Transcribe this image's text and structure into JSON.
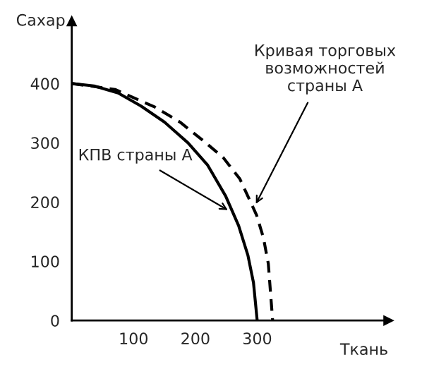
{
  "chart_data": {
    "type": "line",
    "xlabel": "Ткань",
    "ylabel": "Сахар",
    "series": [
      {
        "color": "#000000",
        "line_style": "solid",
        "x": [
          0,
          36,
          75,
          112,
          150,
          188,
          220,
          249,
          270,
          285,
          294,
          300
        ],
        "values": [
          400,
          396,
          384,
          362,
          335,
          300,
          262,
          210,
          160,
          110,
          64,
          0
        ]
      },
      {
        "color": "#000000",
        "line_style": "dashed",
        "x": [
          0,
          70,
          135,
          175,
          211,
          245,
          272,
          299,
          310,
          318,
          325
        ],
        "values": [
          400,
          390,
          360,
          335,
          305,
          275,
          239,
          178,
          140,
          96,
          0
        ]
      }
    ],
    "xlim": [
      0,
      512
    ],
    "ylim": [
      0,
      505
    ],
    "xticks": [
      100,
      200,
      300
    ],
    "yticks": [
      0,
      100,
      200,
      300,
      400
    ],
    "grid": false,
    "legend": false,
    "marker": "none",
    "annotations": [
      {
        "text": "КПВ страны A",
        "x": 258,
        "y": 183
      },
      {
        "text": "Кривая торговых\nвозможностей\nстраны A",
        "x": 295,
        "y": 191
      }
    ]
  }
}
